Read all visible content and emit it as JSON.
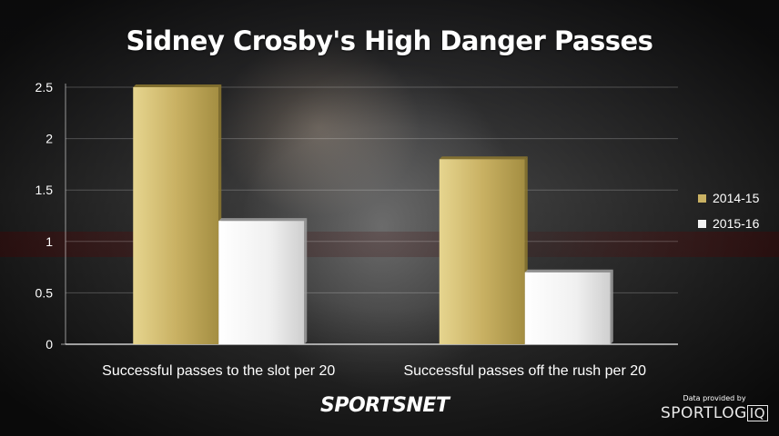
{
  "chart_data": {
    "type": "bar",
    "title": "Sidney Crosby's High Danger Passes",
    "xlabel": "",
    "ylabel": "",
    "categories": [
      "Successful passes to the slot per 20",
      "Successful passes off the rush per 20"
    ],
    "series": [
      {
        "name": "2014-15",
        "values": [
          2.5,
          1.8
        ],
        "color": "#c9b163"
      },
      {
        "name": "2015-16",
        "values": [
          1.2,
          0.7
        ],
        "color": "#f2f2f2"
      }
    ],
    "ylim": [
      0,
      2.5
    ],
    "yticks": [
      "0",
      "0.5",
      "1",
      "1.5",
      "2",
      "2.5"
    ],
    "ytick_values": [
      0,
      0.5,
      1,
      1.5,
      2,
      2.5
    ],
    "grid": true,
    "legend_position": "right"
  },
  "footer": {
    "brand": "SPORTSNET",
    "provided_by": "Data provided by",
    "partner": "SPORTLOG",
    "partner_suffix": "IQ"
  }
}
